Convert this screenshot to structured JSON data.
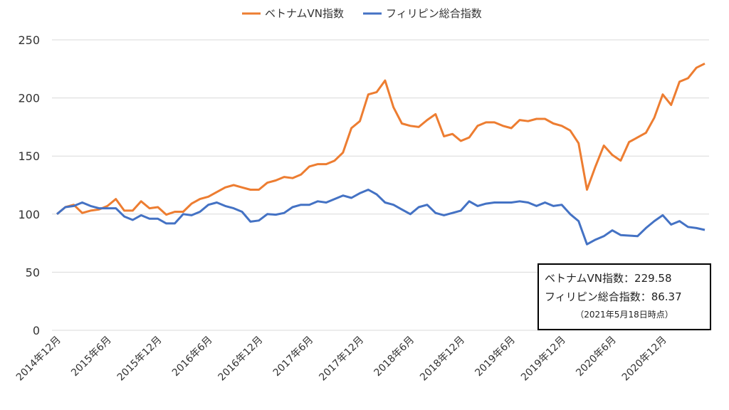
{
  "chart_data": {
    "type": "line",
    "title": "",
    "xlabel": "",
    "ylabel": "",
    "ylim": [
      0,
      250
    ],
    "yticks": [
      0,
      50,
      100,
      150,
      200,
      250
    ],
    "grid": true,
    "legend_position": "top",
    "x_start": "2014-12",
    "x_end": "2021-05",
    "x_frequency": "monthly",
    "xtick_labels": [
      "2014年12月",
      "2015年6月",
      "2015年12月",
      "2016年6月",
      "2016年12月",
      "2017年6月",
      "2017年12月",
      "2018年6月",
      "2018年12月",
      "2019年6月",
      "2019年12月",
      "2020年6月",
      "2020年12月"
    ],
    "series": [
      {
        "name": "ベトナムVN指数",
        "color": "#ED7D31",
        "values": [
          100,
          106,
          108,
          101,
          103,
          104,
          107,
          113,
          103,
          103,
          111,
          105,
          106,
          99.5,
          102,
          102,
          109,
          113,
          115,
          119,
          123,
          125,
          123,
          121,
          121,
          127,
          129,
          132,
          131,
          134,
          141,
          143,
          143,
          146,
          153,
          174,
          180,
          203,
          205,
          215,
          192,
          178,
          176,
          175,
          181,
          186,
          167,
          169,
          163,
          166,
          176,
          179,
          179,
          176,
          174,
          181,
          180,
          182,
          182,
          178,
          176,
          172,
          161,
          121,
          141,
          159,
          151,
          146,
          162,
          166,
          170,
          183,
          203,
          194,
          214,
          217,
          226,
          229.58
        ]
      },
      {
        "name": "フィリピン総合指数",
        "color": "#4472C4",
        "values": [
          100,
          106,
          107,
          110,
          107,
          105,
          105,
          105,
          98,
          95,
          99,
          96,
          96,
          92,
          92,
          100,
          99,
          102,
          108,
          110,
          107,
          105,
          102,
          93.5,
          94.5,
          100,
          99.5,
          101,
          106,
          108,
          108,
          111,
          110,
          113,
          116,
          114,
          118,
          121,
          117,
          110,
          108,
          104,
          100,
          106,
          108,
          101,
          99,
          101,
          103,
          111,
          107,
          109,
          110,
          110,
          110,
          111,
          110,
          107,
          110,
          107,
          108,
          100,
          94,
          74,
          78,
          81,
          86,
          82,
          81.5,
          81,
          88,
          94,
          99,
          91,
          94,
          89,
          88,
          86.37
        ]
      }
    ]
  },
  "annotation": {
    "line1": "ベトナムVN指数：229.58",
    "line2": "フィリピン総合指数：86.37",
    "line3": "（2021年5月18日時点）"
  }
}
